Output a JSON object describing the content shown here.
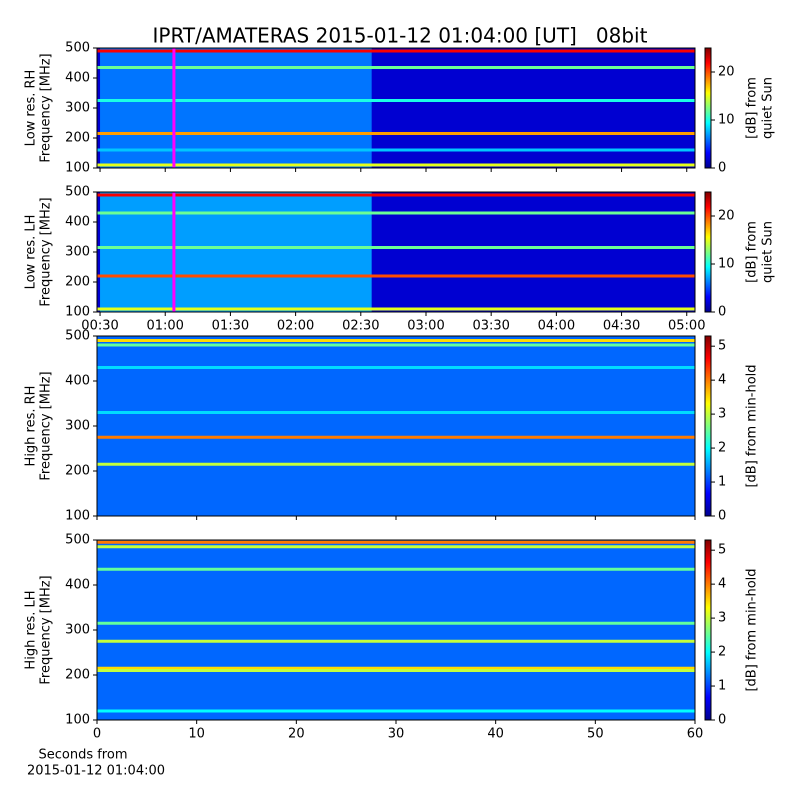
{
  "title": "IPRT/AMATERAS 2015-01-12 01:04:00 [UT]   08bit",
  "chart_data": [
    {
      "type": "heatmap",
      "ylabel": [
        "Low res. RH",
        "Frequency [MHz]"
      ],
      "ylim": [
        100,
        500
      ],
      "yticks": [
        100,
        200,
        300,
        400,
        500
      ],
      "xlim": [
        28.6,
        303.8
      ],
      "xticks": [
        30,
        60,
        90,
        120,
        150,
        180,
        210,
        240,
        270,
        300
      ],
      "xtick_labels": false,
      "base_level": 2,
      "active_interval": [
        30,
        155
      ],
      "active_level": 6,
      "marker_x": 64,
      "marker_color": "#ff00ff",
      "bands": [
        {
          "freq": 490,
          "level": 22
        },
        {
          "freq": 435,
          "level": 12
        },
        {
          "freq": 325,
          "level": 10
        },
        {
          "freq": 215,
          "level": 18
        },
        {
          "freq": 160,
          "level": 8
        },
        {
          "freq": 110,
          "level": 15
        }
      ],
      "colorbar": {
        "label": [
          "[dB] from",
          "quiet Sun"
        ],
        "lim": [
          0,
          25
        ],
        "ticks": [
          0,
          10,
          20
        ]
      }
    },
    {
      "type": "heatmap",
      "ylabel": [
        "Low res. LH",
        "Frequency [MHz]"
      ],
      "ylim": [
        100,
        500
      ],
      "yticks": [
        100,
        200,
        300,
        400,
        500
      ],
      "xlim": [
        28.6,
        303.8
      ],
      "xticks": [
        {
          "value": 30,
          "label": "00:30"
        },
        {
          "value": 60,
          "label": "01:00"
        },
        {
          "value": 90,
          "label": "01:30"
        },
        {
          "value": 120,
          "label": "02:00"
        },
        {
          "value": 150,
          "label": "02:30"
        },
        {
          "value": 180,
          "label": "03:00"
        },
        {
          "value": 210,
          "label": "03:30"
        },
        {
          "value": 240,
          "label": "04:00"
        },
        {
          "value": 270,
          "label": "04:30"
        },
        {
          "value": 300,
          "label": "05:00"
        }
      ],
      "xtick_labels": true,
      "base_level": 2,
      "active_interval": [
        30,
        155
      ],
      "active_level": 7,
      "marker_x": 64,
      "marker_color": "#ff00ff",
      "bands": [
        {
          "freq": 490,
          "level": 22
        },
        {
          "freq": 430,
          "level": 12
        },
        {
          "freq": 315,
          "level": 12
        },
        {
          "freq": 220,
          "level": 20
        },
        {
          "freq": 110,
          "level": 15
        }
      ],
      "colorbar": {
        "label": [
          "[dB] from",
          "quiet Sun"
        ],
        "lim": [
          0,
          25
        ],
        "ticks": [
          0,
          10,
          20
        ]
      }
    },
    {
      "type": "heatmap",
      "ylabel": [
        "High res. RH",
        "Frequency [MHz]"
      ],
      "ylim": [
        100,
        500
      ],
      "yticks": [
        100,
        200,
        300,
        400,
        500
      ],
      "xlim": [
        0,
        60
      ],
      "xticks": [
        0,
        10,
        20,
        30,
        40,
        50,
        60
      ],
      "xtick_labels": false,
      "base_level": 1.2,
      "bands": [
        {
          "freq": 490,
          "level": 3.5
        },
        {
          "freq": 480,
          "level": 2.5
        },
        {
          "freq": 430,
          "level": 1.8
        },
        {
          "freq": 330,
          "level": 1.8
        },
        {
          "freq": 275,
          "level": 4
        },
        {
          "freq": 215,
          "level": 3
        }
      ],
      "colorbar": {
        "label": [
          "[dB] from min-hold"
        ],
        "lim": [
          0,
          5.3
        ],
        "ticks": [
          0,
          1,
          2,
          3,
          4,
          5
        ]
      }
    },
    {
      "type": "heatmap",
      "ylabel": [
        "High res. LH",
        "Frequency [MHz]"
      ],
      "ylim": [
        100,
        500
      ],
      "yticks": [
        100,
        200,
        300,
        400,
        500
      ],
      "xlim": [
        0,
        60
      ],
      "xticks": [
        0,
        10,
        20,
        30,
        40,
        50,
        60
      ],
      "xtick_labels": true,
      "xlabel": [
        "Seconds from",
        "2015-01-12 01:04:00"
      ],
      "base_level": 1.2,
      "bands": [
        {
          "freq": 495,
          "level": 4
        },
        {
          "freq": 485,
          "level": 3
        },
        {
          "freq": 435,
          "level": 2.5
        },
        {
          "freq": 315,
          "level": 2.5
        },
        {
          "freq": 275,
          "level": 3
        },
        {
          "freq": 215,
          "level": 3.5
        },
        {
          "freq": 210,
          "level": 3
        },
        {
          "freq": 120,
          "level": 2
        }
      ],
      "colorbar": {
        "label": [
          "[dB] from min-hold"
        ],
        "lim": [
          0,
          5.3
        ],
        "ticks": [
          0,
          1,
          2,
          3,
          4,
          5
        ]
      }
    }
  ]
}
